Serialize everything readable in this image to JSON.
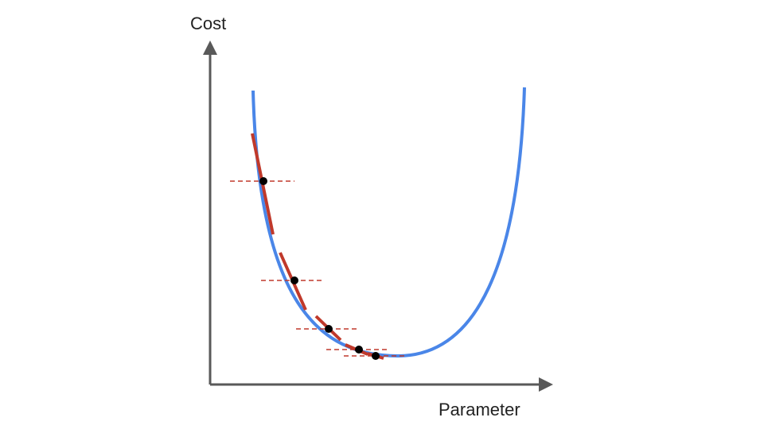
{
  "diagram": {
    "y_axis_label": "Cost",
    "x_axis_label": "Parameter",
    "colors": {
      "axis": "#595959",
      "cost_curve": "#4a86e8",
      "tangent": "#c0392b",
      "step_point": "#000000"
    },
    "steps": [
      {
        "parameter": 1,
        "cost": 6.5
      },
      {
        "parameter": 2,
        "cost": 4.2
      },
      {
        "parameter": 3,
        "cost": 2.4
      },
      {
        "parameter": 4,
        "cost": 1.1
      },
      {
        "parameter": 5,
        "cost": 0.6
      }
    ]
  }
}
